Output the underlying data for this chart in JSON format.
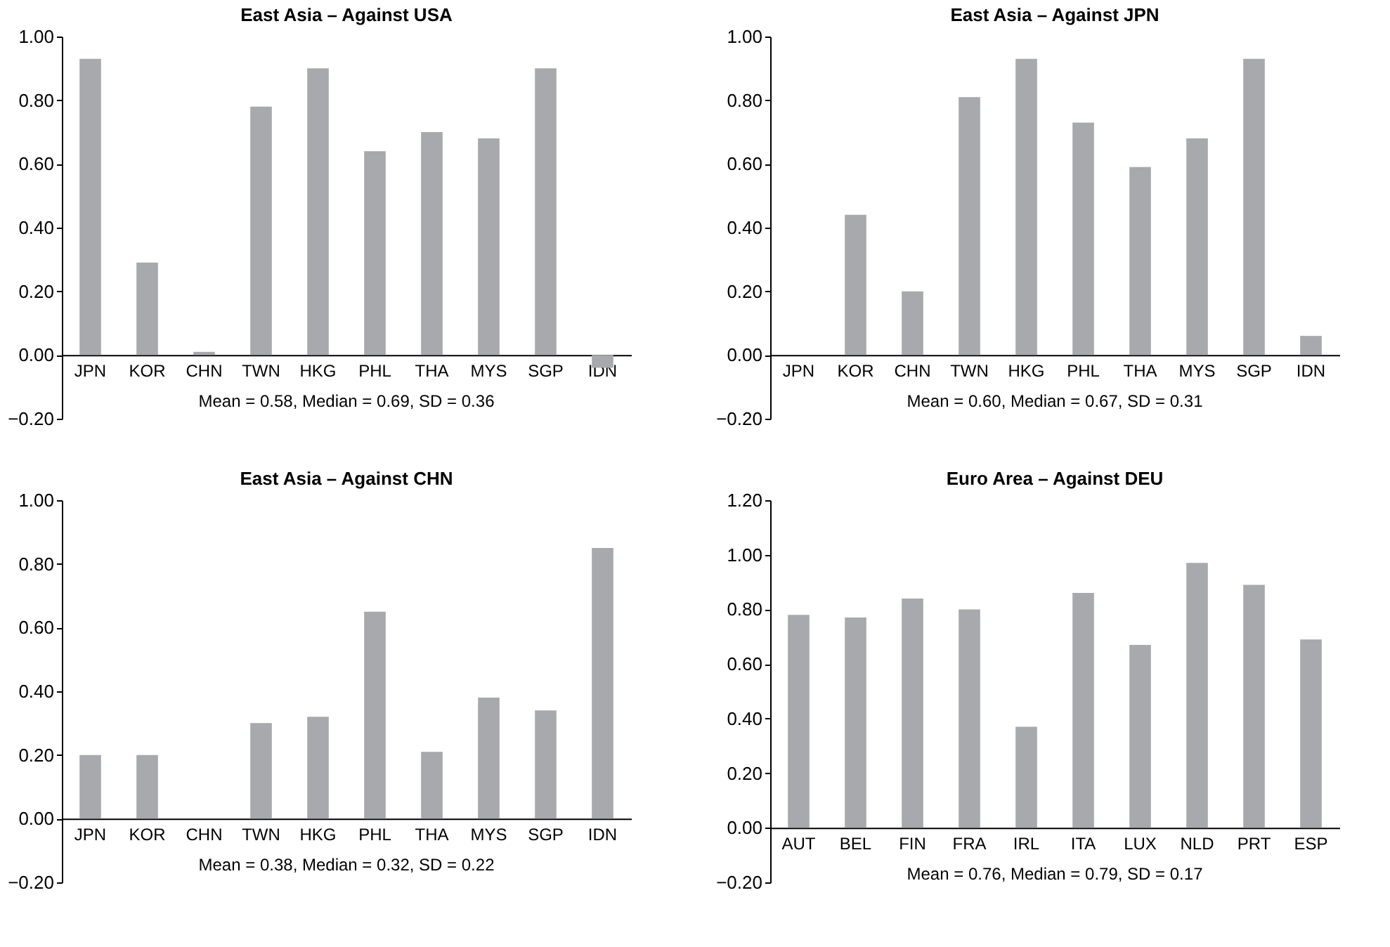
{
  "chart_data": [
    {
      "type": "bar",
      "title": "East Asia – Against USA",
      "categories": [
        "JPN",
        "KOR",
        "CHN",
        "TWN",
        "HKG",
        "PHL",
        "THA",
        "MYS",
        "SGP",
        "IDN"
      ],
      "values": [
        0.93,
        0.29,
        0.01,
        0.78,
        0.9,
        0.64,
        0.7,
        0.68,
        0.9,
        -0.04
      ],
      "color": "#a7a9ac",
      "ylim": [
        -0.2,
        1.0
      ],
      "yticks": [
        {
          "value": -0.2,
          "label": "−0.20"
        },
        {
          "value": 0,
          "label": "0.00"
        },
        {
          "value": 0.2,
          "label": "0.20"
        },
        {
          "value": 0.4,
          "label": "0.40"
        },
        {
          "value": 0.6,
          "label": "0.60"
        },
        {
          "value": 0.8,
          "label": "0.80"
        },
        {
          "value": 1.0,
          "label": "1.00"
        }
      ],
      "grid": false,
      "annotations": [
        "Mean = 0.58, Median = 0.69, SD = 0.36"
      ]
    },
    {
      "type": "bar",
      "title": "East Asia – Against JPN",
      "categories": [
        "JPN",
        "KOR",
        "CHN",
        "TWN",
        "HKG",
        "PHL",
        "THA",
        "MYS",
        "SGP",
        "IDN"
      ],
      "values": [
        null,
        0.44,
        0.2,
        0.81,
        0.93,
        0.73,
        0.59,
        0.68,
        0.93,
        0.06
      ],
      "color": "#a7a9ac",
      "ylim": [
        -0.2,
        1.0
      ],
      "yticks": [
        {
          "value": -0.2,
          "label": "−0.20"
        },
        {
          "value": 0,
          "label": "0.00"
        },
        {
          "value": 0.2,
          "label": "0.20"
        },
        {
          "value": 0.4,
          "label": "0.40"
        },
        {
          "value": 0.6,
          "label": "0.60"
        },
        {
          "value": 0.8,
          "label": "0.80"
        },
        {
          "value": 1.0,
          "label": "1.00"
        }
      ],
      "grid": false,
      "annotations": [
        "Mean = 0.60, Median = 0.67, SD = 0.31"
      ]
    },
    {
      "type": "bar",
      "title": "East Asia – Against CHN",
      "categories": [
        "JPN",
        "KOR",
        "CHN",
        "TWN",
        "HKG",
        "PHL",
        "THA",
        "MYS",
        "SGP",
        "IDN"
      ],
      "values": [
        0.2,
        0.2,
        null,
        0.3,
        0.32,
        0.65,
        0.21,
        0.38,
        0.34,
        0.85
      ],
      "color": "#a7a9ac",
      "ylim": [
        -0.2,
        1.0
      ],
      "yticks": [
        {
          "value": -0.2,
          "label": "−0.20"
        },
        {
          "value": 0,
          "label": "0.00"
        },
        {
          "value": 0.2,
          "label": "0.20"
        },
        {
          "value": 0.4,
          "label": "0.40"
        },
        {
          "value": 0.6,
          "label": "0.60"
        },
        {
          "value": 0.8,
          "label": "0.80"
        },
        {
          "value": 1.0,
          "label": "1.00"
        }
      ],
      "grid": false,
      "annotations": [
        "Mean = 0.38, Median = 0.32, SD = 0.22"
      ]
    },
    {
      "type": "bar",
      "title": "Euro Area – Against DEU",
      "categories": [
        "AUT",
        "BEL",
        "FIN",
        "FRA",
        "IRL",
        "ITA",
        "LUX",
        "NLD",
        "PRT",
        "ESP"
      ],
      "values": [
        0.78,
        0.77,
        0.84,
        0.8,
        0.37,
        0.86,
        0.67,
        0.97,
        0.89,
        0.69
      ],
      "color": "#a7a9ac",
      "ylim": [
        -0.2,
        1.2
      ],
      "yticks": [
        {
          "value": -0.2,
          "label": "−0.20"
        },
        {
          "value": 0,
          "label": "0.00"
        },
        {
          "value": 0.2,
          "label": "0.20"
        },
        {
          "value": 0.4,
          "label": "0.40"
        },
        {
          "value": 0.6,
          "label": "0.60"
        },
        {
          "value": 0.8,
          "label": "0.80"
        },
        {
          "value": 1.0,
          "label": "1.00"
        },
        {
          "value": 1.2,
          "label": "1.20"
        }
      ],
      "grid": false,
      "annotations": [
        "Mean = 0.76, Median = 0.79, SD = 0.17"
      ]
    }
  ]
}
